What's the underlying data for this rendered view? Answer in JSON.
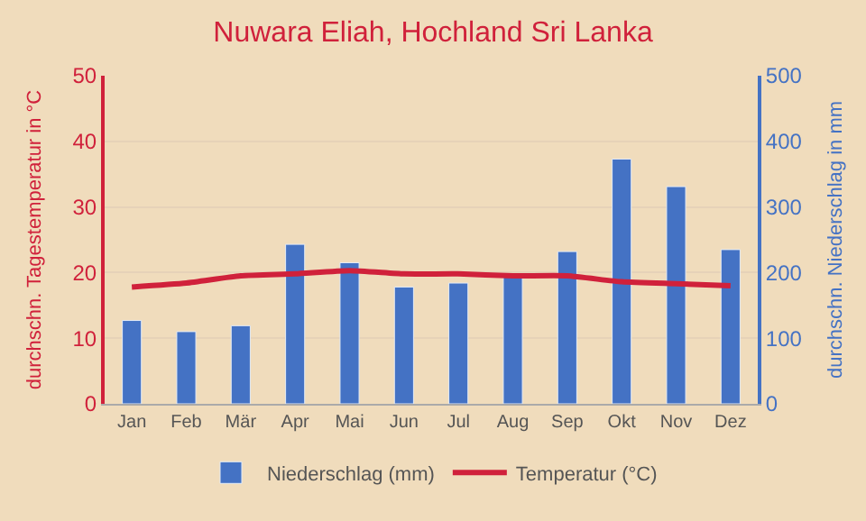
{
  "chart_data": {
    "type": "bar",
    "title": "Nuwara Eliah, Hochland Sri Lanka",
    "categories": [
      "Jan",
      "Feb",
      "Mär",
      "Apr",
      "Mai",
      "Jun",
      "Jul",
      "Aug",
      "Sep",
      "Okt",
      "Nov",
      "Dez"
    ],
    "series": [
      {
        "name": "Niederschlag (mm)",
        "axis": "y2",
        "color": "#4472c4",
        "values": [
          127,
          110,
          119,
          243,
          215,
          178,
          184,
          195,
          232,
          373,
          331,
          235
        ]
      },
      {
        "name": "Temperatur (°C)",
        "type": "line",
        "color": "#d0213b",
        "values": [
          17.8,
          18.4,
          19.5,
          19.8,
          20.3,
          19.8,
          19.8,
          19.5,
          19.5,
          18.6,
          18.3,
          18.0
        ]
      }
    ],
    "ylabel": "durchschn. Tagestemperatur in °C",
    "y2label": "durchschn. Niederschlag in mm",
    "ylim": [
      0,
      50
    ],
    "yticks": [
      0,
      10,
      20,
      30,
      40,
      50
    ],
    "y2lim": [
      0,
      500
    ],
    "y2ticks": [
      0,
      100,
      200,
      300,
      400,
      500
    ],
    "grid": "y",
    "legend": "bottom"
  }
}
